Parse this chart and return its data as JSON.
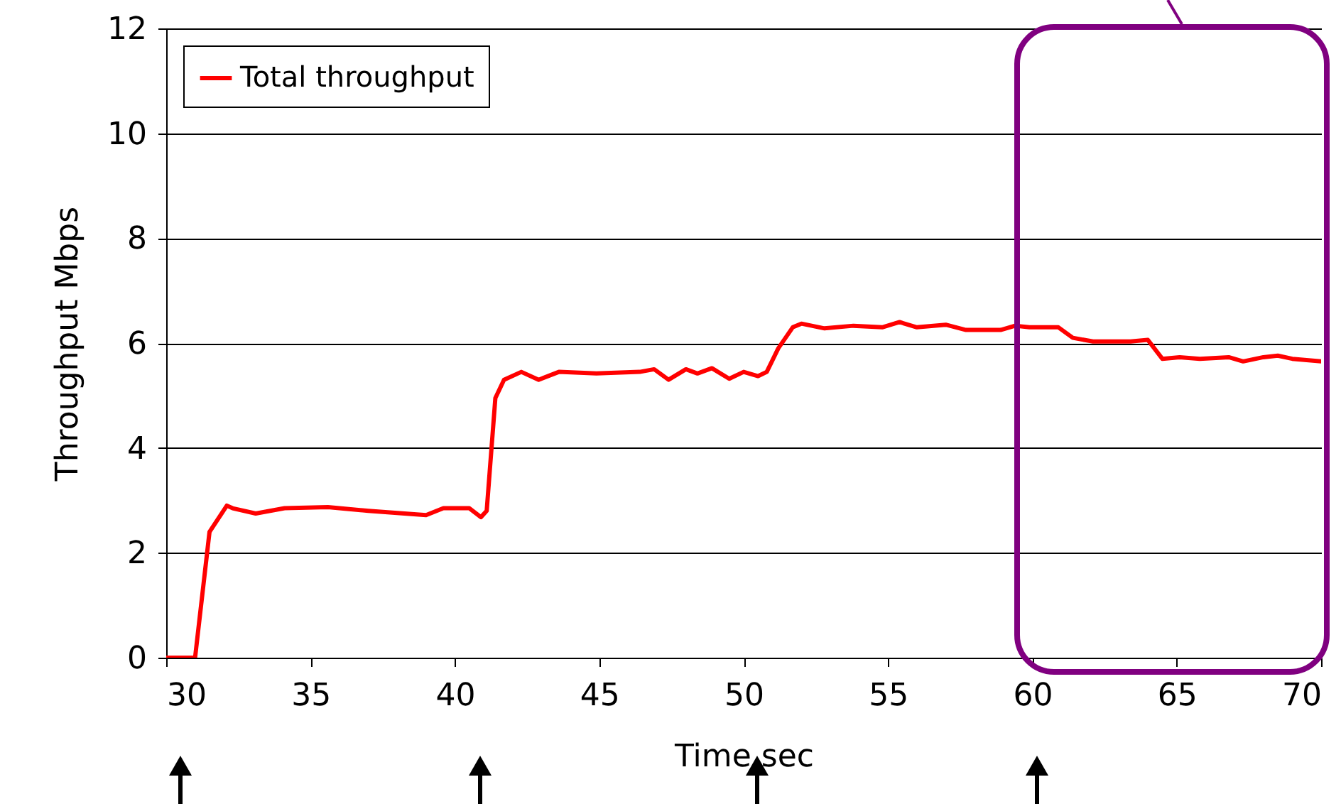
{
  "chart_data": {
    "type": "line",
    "xlabel": "Time  sec",
    "ylabel": "Throughput  Mbps",
    "xlim": [
      30,
      70
    ],
    "xticks": [
      30,
      35,
      40,
      45,
      50,
      55,
      60,
      65,
      70
    ],
    "ylim": [
      0,
      12
    ],
    "yticks": [
      0,
      2,
      4,
      6,
      8,
      10,
      12
    ],
    "grid": "y",
    "legend": "top left",
    "marker": "none",
    "line_style": "solid",
    "series": [
      {
        "name": "Total throughput",
        "color": "#ff0000",
        "x": [
          30,
          31.0,
          31.5,
          32.1,
          32.3,
          33.1,
          34.1,
          35.6,
          37.0,
          39.0,
          39.6,
          40.5,
          40.9,
          41.1,
          41.4,
          41.7,
          42.3,
          42.9,
          43.6,
          44.9,
          46.4,
          46.9,
          47.4,
          48.0,
          48.4,
          48.9,
          49.5,
          50.0,
          50.5,
          50.8,
          51.2,
          51.7,
          52.0,
          52.8,
          53.8,
          54.8,
          55.4,
          56.0,
          57.0,
          57.7,
          58.9,
          59.4,
          59.9,
          60.9,
          61.4,
          62.1,
          63.4,
          64.0,
          64.5,
          65.1,
          65.8,
          66.8,
          67.3,
          68.0,
          68.5,
          69.0,
          70
        ],
        "values": [
          0,
          0,
          2.4,
          2.9,
          2.85,
          2.75,
          2.85,
          2.87,
          2.8,
          2.72,
          2.85,
          2.85,
          2.68,
          2.8,
          4.95,
          5.3,
          5.45,
          5.3,
          5.45,
          5.42,
          5.45,
          5.5,
          5.3,
          5.5,
          5.42,
          5.52,
          5.32,
          5.45,
          5.37,
          5.45,
          5.9,
          6.3,
          6.37,
          6.28,
          6.33,
          6.3,
          6.4,
          6.3,
          6.35,
          6.25,
          6.25,
          6.33,
          6.3,
          6.3,
          6.1,
          6.03,
          6.03,
          6.06,
          5.7,
          5.73,
          5.7,
          5.73,
          5.65,
          5.73,
          5.76,
          5.7,
          5.65
        ]
      }
    ]
  }
}
